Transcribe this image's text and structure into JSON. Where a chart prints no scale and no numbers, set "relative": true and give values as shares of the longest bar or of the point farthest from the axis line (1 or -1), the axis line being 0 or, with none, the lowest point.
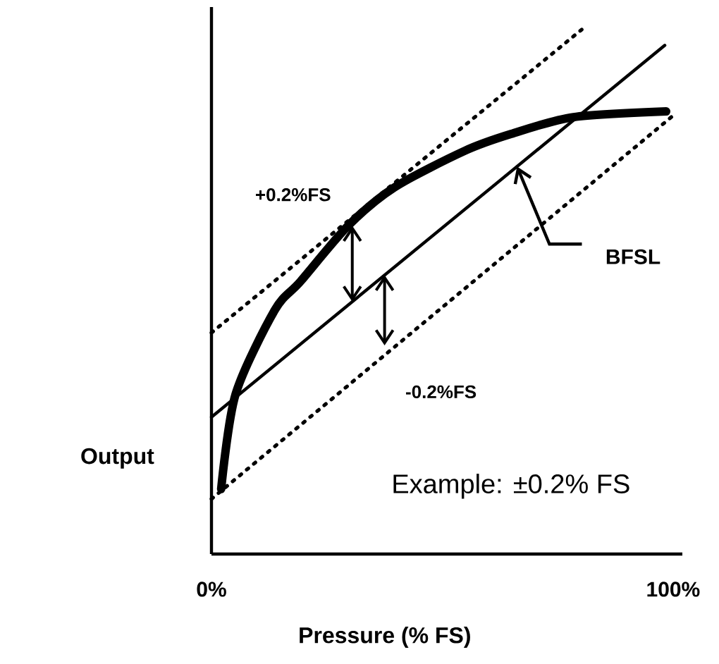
{
  "chart_data": {
    "type": "line",
    "relative": true,
    "xlabel": "Pressure (% FS)",
    "ylabel": "Output",
    "xlim": [
      0,
      102
    ],
    "xticks": [
      {
        "value": 0,
        "label": "0%"
      },
      {
        "value": 100,
        "label": "100%"
      }
    ],
    "marker": "none",
    "grid": false,
    "series": [
      {
        "color": "#000000",
        "line_style": "solid",
        "x": [
          2.1,
          5.2,
          13.7,
          19.2,
          29.6,
          39.6,
          54.9,
          64.9,
          78.4,
          98.5
        ],
        "values": [
          0.124,
          0.304,
          0.465,
          0.519,
          0.626,
          0.699,
          0.769,
          0.801,
          0.833,
          0.844
        ]
      },
      {
        "name": "BFSL",
        "color": "#000000",
        "line_style": "solid",
        "x": [
          0,
          98.2
        ],
        "values": [
          0.261,
          0.97
        ]
      },
      {
        "color": "#000000",
        "line_style": "dotted",
        "x": [
          0,
          80.2
        ],
        "values": [
          0.422,
          1.0
        ]
      },
      {
        "color": "#000000",
        "line_style": "dotted",
        "x": [
          0,
          100
        ],
        "values": [
          0.105,
          0.836
        ]
      }
    ],
    "annotations": [
      {
        "text": "+0.2%FS",
        "x": 30.5,
        "y": 0.626
      },
      {
        "text": "-0.2%FS",
        "x": 37.5,
        "y": 0.398
      },
      "Example: ±0.2% FS"
    ]
  }
}
